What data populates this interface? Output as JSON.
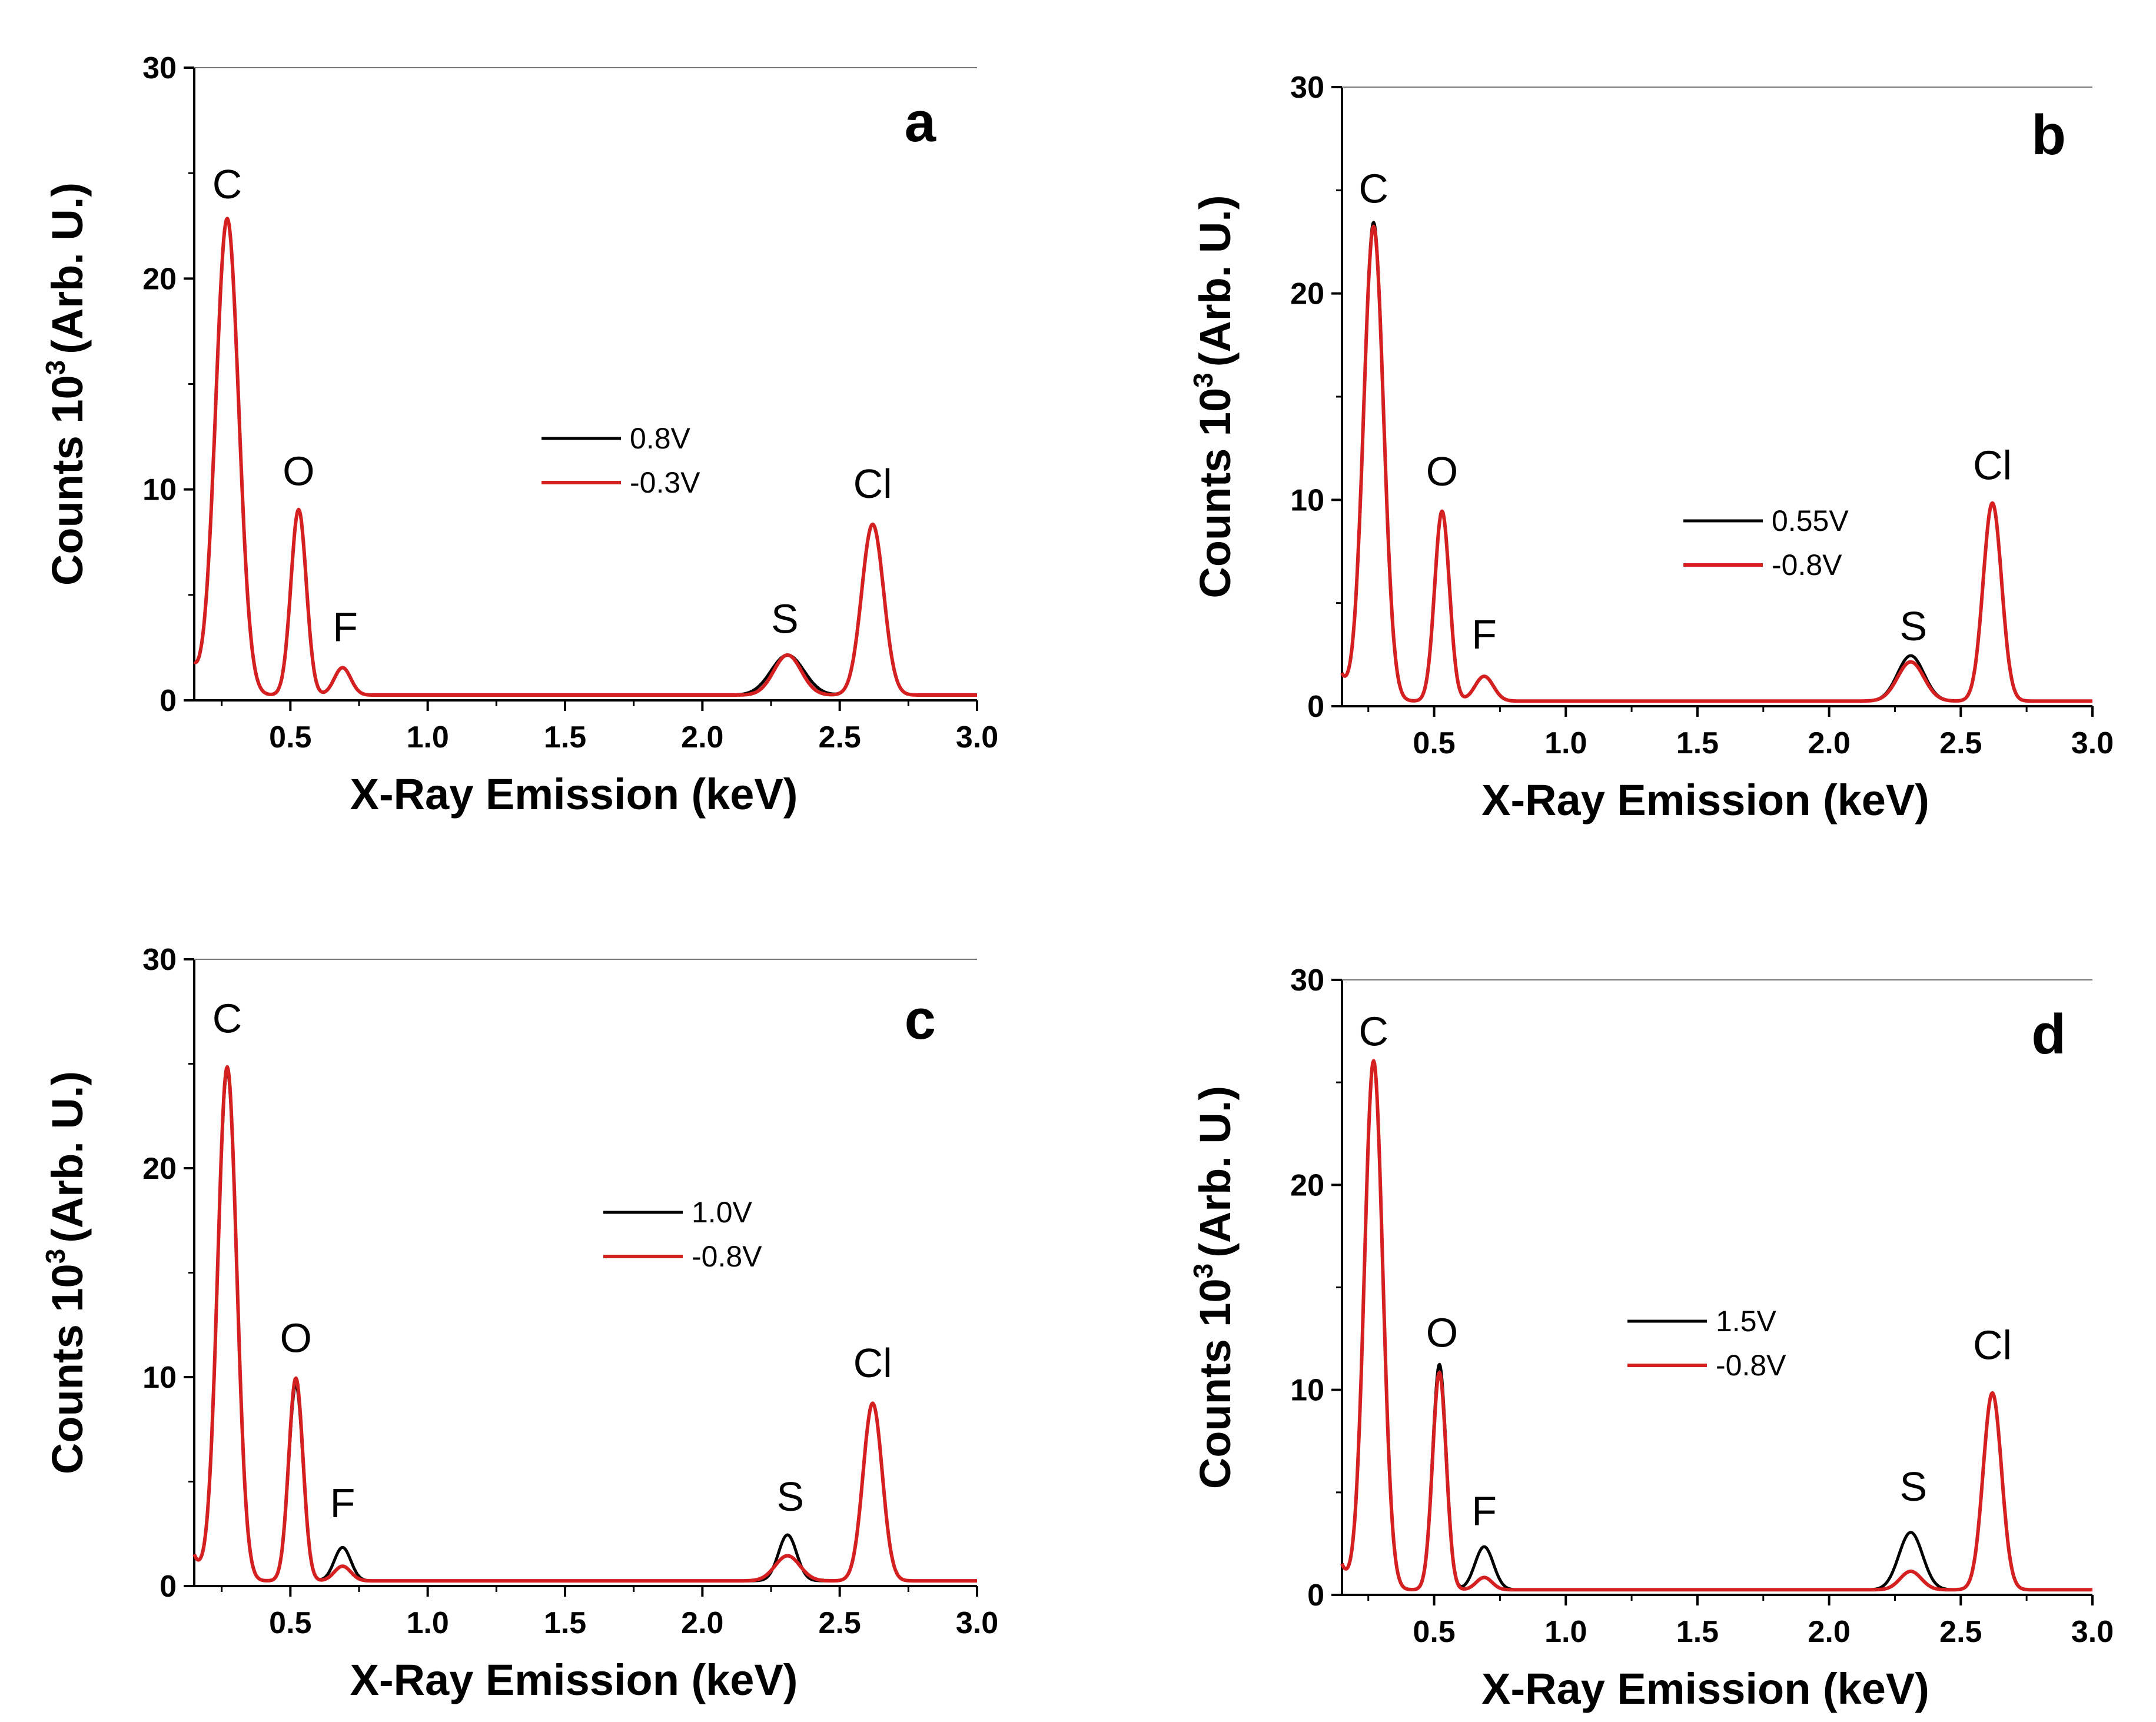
{
  "colors": {
    "series_a": "#000000",
    "series_b": "#d42020"
  },
  "chart_data": [
    {
      "type": "line",
      "panel": "a",
      "xlabel": "X-Ray Emission (keV)",
      "ylabel_main": "Counts 10",
      "ylabel_sup": "3",
      "ylabel_unit": "(Arb. U.)",
      "xlim": [
        0.15,
        3.0
      ],
      "ylim": [
        0,
        30
      ],
      "xticks": [
        0.5,
        1.0,
        1.5,
        2.0,
        2.5,
        3.0
      ],
      "xtick_labels": [
        "0.5",
        "1.0",
        "1.5",
        "2.0",
        "2.5",
        "3.0"
      ],
      "yticks": [
        0,
        10,
        20,
        30
      ],
      "ytick_labels": [
        "0",
        "10",
        "20",
        "30"
      ],
      "legend": [
        "0.8V",
        "-0.3V"
      ],
      "peak_labels": [
        {
          "text": "C",
          "x": 0.27,
          "y": 23.8
        },
        {
          "text": "O",
          "x": 0.53,
          "y": 10.2
        },
        {
          "text": "F",
          "x": 0.7,
          "y": 2.8
        },
        {
          "text": "S",
          "x": 2.3,
          "y": 3.2
        },
        {
          "text": "Cl",
          "x": 2.62,
          "y": 9.6
        }
      ],
      "series": [
        {
          "name": "0.8V",
          "peaks": [
            [
              0.27,
              22.6,
              0.042
            ],
            [
              0.53,
              8.8,
              0.028
            ],
            [
              0.69,
              1.3,
              0.03
            ],
            [
              2.31,
              1.9,
              0.06
            ],
            [
              2.62,
              8.1,
              0.04
            ]
          ]
        },
        {
          "name": "-0.3V",
          "peaks": [
            [
              0.27,
              22.6,
              0.042
            ],
            [
              0.53,
              8.8,
              0.028
            ],
            [
              0.69,
              1.3,
              0.03
            ],
            [
              2.31,
              1.9,
              0.05
            ],
            [
              2.62,
              8.1,
              0.04
            ]
          ]
        }
      ]
    },
    {
      "type": "line",
      "panel": "b",
      "xlabel": "X-Ray Emission (keV)",
      "ylabel_main": "Counts 10",
      "ylabel_sup": "3",
      "ylabel_unit": "(Arb. U.)",
      "xlim": [
        0.15,
        3.0
      ],
      "ylim": [
        0,
        30
      ],
      "xticks": [
        0.5,
        1.0,
        1.5,
        2.0,
        2.5,
        3.0
      ],
      "xtick_labels": [
        "0.5",
        "1.0",
        "1.5",
        "2.0",
        "2.5",
        "3.0"
      ],
      "yticks": [
        0,
        10,
        20,
        30
      ],
      "ytick_labels": [
        "0",
        "10",
        "20",
        "30"
      ],
      "legend": [
        "0.55V",
        "-0.8V"
      ],
      "peak_labels": [
        {
          "text": "C",
          "x": 0.27,
          "y": 24.4
        },
        {
          "text": "O",
          "x": 0.53,
          "y": 10.7
        },
        {
          "text": "F",
          "x": 0.69,
          "y": 2.8
        },
        {
          "text": "S",
          "x": 2.32,
          "y": 3.2
        },
        {
          "text": "Cl",
          "x": 2.62,
          "y": 11.0
        }
      ],
      "series": [
        {
          "name": "0.55V",
          "peaks": [
            [
              0.27,
              23.2,
              0.038
            ],
            [
              0.53,
              9.2,
              0.028
            ],
            [
              0.69,
              1.2,
              0.035
            ],
            [
              2.31,
              2.2,
              0.05
            ],
            [
              2.62,
              9.6,
              0.035
            ]
          ]
        },
        {
          "name": "-0.8V",
          "peaks": [
            [
              0.27,
              23.0,
              0.038
            ],
            [
              0.53,
              9.2,
              0.028
            ],
            [
              0.69,
              1.2,
              0.035
            ],
            [
              2.31,
              1.9,
              0.05
            ],
            [
              2.62,
              9.6,
              0.035
            ]
          ]
        }
      ]
    },
    {
      "type": "line",
      "panel": "c",
      "xlabel": "X-Ray Emission (keV)",
      "ylabel_main": "Counts 10",
      "ylabel_sup": "3",
      "ylabel_unit": "(Arb. U.)",
      "xlim": [
        0.15,
        3.0
      ],
      "ylim": [
        0,
        30
      ],
      "xticks": [
        0.5,
        1.0,
        1.5,
        2.0,
        2.5,
        3.0
      ],
      "xtick_labels": [
        "0.5",
        "1.0",
        "1.5",
        "2.0",
        "2.5",
        "3.0"
      ],
      "yticks": [
        0,
        10,
        20,
        30
      ],
      "ytick_labels": [
        "0",
        "10",
        "20",
        "30"
      ],
      "legend": [
        "1.0V",
        "-0.8V"
      ],
      "peak_labels": [
        {
          "text": "C",
          "x": 0.27,
          "y": 26.5
        },
        {
          "text": "O",
          "x": 0.52,
          "y": 11.2
        },
        {
          "text": "F",
          "x": 0.69,
          "y": 3.3
        },
        {
          "text": "S",
          "x": 2.32,
          "y": 3.6
        },
        {
          "text": "Cl",
          "x": 2.62,
          "y": 10.0
        }
      ],
      "series": [
        {
          "name": "1.0V",
          "peaks": [
            [
              0.27,
              24.4,
              0.035
            ],
            [
              0.52,
              9.4,
              0.026
            ],
            [
              0.69,
              1.6,
              0.03
            ],
            [
              2.31,
              2.2,
              0.033
            ],
            [
              2.62,
              8.5,
              0.035
            ]
          ]
        },
        {
          "name": "-0.8V",
          "peaks": [
            [
              0.27,
              24.6,
              0.035
            ],
            [
              0.52,
              9.7,
              0.026
            ],
            [
              0.69,
              0.7,
              0.03
            ],
            [
              2.31,
              1.2,
              0.045
            ],
            [
              2.62,
              8.5,
              0.035
            ]
          ]
        }
      ]
    },
    {
      "type": "line",
      "panel": "d",
      "xlabel": "X-Ray Emission (keV)",
      "ylabel_main": "Counts 10",
      "ylabel_sup": "3",
      "ylabel_unit": "(Arb. U.)",
      "xlim": [
        0.15,
        3.0
      ],
      "ylim": [
        0,
        30
      ],
      "xticks": [
        0.5,
        1.0,
        1.5,
        2.0,
        2.5,
        3.0
      ],
      "xtick_labels": [
        "0.5",
        "1.0",
        "1.5",
        "2.0",
        "2.5",
        "3.0"
      ],
      "yticks": [
        0,
        10,
        20,
        30
      ],
      "ytick_labels": [
        "0",
        "10",
        "20",
        "30"
      ],
      "legend": [
        "1.5V",
        "-0.8V"
      ],
      "peak_labels": [
        {
          "text": "C",
          "x": 0.27,
          "y": 26.8
        },
        {
          "text": "O",
          "x": 0.53,
          "y": 12.1
        },
        {
          "text": "F",
          "x": 0.69,
          "y": 3.4
        },
        {
          "text": "S",
          "x": 2.32,
          "y": 4.6
        },
        {
          "text": "Cl",
          "x": 2.62,
          "y": 11.5
        }
      ],
      "series": [
        {
          "name": "1.5V",
          "peaks": [
            [
              0.27,
              25.8,
              0.035
            ],
            [
              0.52,
              11.0,
              0.026
            ],
            [
              0.69,
              2.1,
              0.035
            ],
            [
              2.31,
              2.8,
              0.045
            ],
            [
              2.62,
              9.6,
              0.035
            ]
          ]
        },
        {
          "name": "-0.8V",
          "peaks": [
            [
              0.27,
              25.8,
              0.035
            ],
            [
              0.52,
              10.6,
              0.026
            ],
            [
              0.69,
              0.6,
              0.03
            ],
            [
              2.31,
              0.9,
              0.04
            ],
            [
              2.62,
              9.6,
              0.035
            ]
          ]
        }
      ]
    }
  ]
}
